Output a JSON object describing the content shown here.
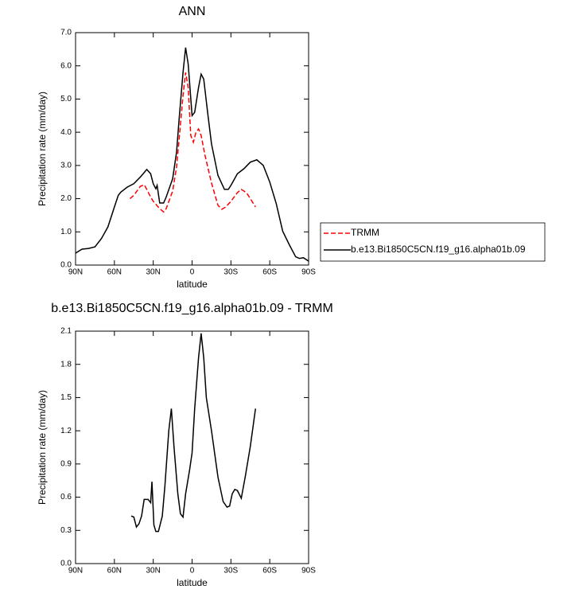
{
  "chart_data": [
    {
      "type": "line",
      "title": "ANN",
      "xlabel": "latitude",
      "ylabel": "Precipitation rate (mm/day)",
      "xlim": [
        90,
        -90
      ],
      "xticks": [
        {
          "value": 90,
          "label": "90N"
        },
        {
          "value": 60,
          "label": "60N"
        },
        {
          "value": 30,
          "label": "30N"
        },
        0,
        {
          "value": -30,
          "label": "30S"
        },
        {
          "value": -60,
          "label": "60S"
        },
        {
          "value": -90,
          "label": "90S"
        }
      ],
      "ylim": [
        0,
        7
      ],
      "yticks": [
        {
          "value": 0,
          "label": "0.0"
        },
        {
          "value": 1,
          "label": "1.0"
        },
        {
          "value": 2,
          "label": "2.0"
        },
        {
          "value": 3,
          "label": "3.0"
        },
        {
          "value": 4,
          "label": "4.0"
        },
        {
          "value": 5,
          "label": "5.0"
        },
        {
          "value": 6,
          "label": "6.0"
        },
        {
          "value": 7,
          "label": "7.0"
        }
      ],
      "legend": "right",
      "series": [
        {
          "name": "TRMM",
          "color": "#ff0000",
          "line_style": "dashed",
          "x": [
            48,
            45,
            40,
            37,
            35,
            32,
            30,
            25,
            22,
            20,
            15,
            12,
            10,
            7,
            5,
            3,
            1,
            -1,
            -3,
            -5,
            -7,
            -10,
            -15,
            -20,
            -23,
            -26,
            -30,
            -35,
            -38,
            -42,
            -45,
            -49
          ],
          "values": [
            2.0,
            2.1,
            2.37,
            2.42,
            2.28,
            2.05,
            1.92,
            1.7,
            1.6,
            1.7,
            2.23,
            2.95,
            3.8,
            5.1,
            5.8,
            5.35,
            3.9,
            3.7,
            4.0,
            4.1,
            3.9,
            3.3,
            2.47,
            1.8,
            1.68,
            1.75,
            1.92,
            2.18,
            2.28,
            2.18,
            2.0,
            1.75
          ]
        },
        {
          "name": "b.e13.Bi1850C5CN.f19_g16.alpha01b.09",
          "color": "#000000",
          "line_style": "solid",
          "x": [
            90,
            85,
            80,
            75,
            70,
            65,
            60,
            57,
            55,
            50,
            45,
            40,
            35,
            32,
            30,
            28,
            27,
            25,
            22,
            20,
            15,
            12,
            10,
            7,
            5,
            3,
            0,
            -2,
            -5,
            -7,
            -9,
            -12,
            -15,
            -20,
            -25,
            -28,
            -30,
            -35,
            -40,
            -45,
            -50,
            -55,
            -60,
            -65,
            -70,
            -75,
            -80,
            -83,
            -86,
            -90
          ],
          "values": [
            0.36,
            0.48,
            0.5,
            0.55,
            0.8,
            1.15,
            1.75,
            2.1,
            2.2,
            2.35,
            2.45,
            2.65,
            2.88,
            2.75,
            2.45,
            2.3,
            2.4,
            1.87,
            1.87,
            2.05,
            2.6,
            3.4,
            4.4,
            5.8,
            6.55,
            6.05,
            4.5,
            4.6,
            5.35,
            5.75,
            5.6,
            4.6,
            3.65,
            2.7,
            2.28,
            2.28,
            2.4,
            2.75,
            2.9,
            3.1,
            3.17,
            3.0,
            2.5,
            1.85,
            1.02,
            0.62,
            0.25,
            0.2,
            0.22,
            0.12
          ]
        }
      ]
    },
    {
      "type": "line",
      "title": "b.e13.Bi1850C5CN.f19_g16.alpha01b.09 - TRMM",
      "xlabel": "latitude",
      "ylabel": "Precipitation rate (mm/day)",
      "xlim": [
        90,
        -90
      ],
      "xticks": [
        {
          "value": 90,
          "label": "90N"
        },
        {
          "value": 60,
          "label": "60N"
        },
        {
          "value": 30,
          "label": "30N"
        },
        0,
        {
          "value": -30,
          "label": "30S"
        },
        {
          "value": -60,
          "label": "60S"
        },
        {
          "value": -90,
          "label": "90S"
        }
      ],
      "ylim": [
        0,
        2.1
      ],
      "yticks": [
        {
          "value": 0,
          "label": "0.0"
        },
        0.3,
        0.6,
        0.9,
        1.2,
        1.5,
        1.8,
        2.1
      ],
      "color": "#000000",
      "x": [
        47,
        45,
        43,
        41,
        39,
        37,
        34,
        32,
        31,
        29.5,
        28,
        26,
        23,
        21,
        18,
        16,
        14,
        11,
        9,
        7,
        5,
        2,
        0,
        -2,
        -5,
        -7,
        -9,
        -11,
        -15,
        -20,
        -24,
        -27,
        -29,
        -31,
        -33,
        -35,
        -38,
        -41,
        -45,
        -49
      ],
      "values": [
        0.43,
        0.42,
        0.33,
        0.36,
        0.43,
        0.58,
        0.58,
        0.55,
        0.74,
        0.35,
        0.29,
        0.29,
        0.43,
        0.7,
        1.2,
        1.4,
        1.06,
        0.63,
        0.45,
        0.42,
        0.63,
        0.84,
        1.0,
        1.4,
        1.86,
        2.08,
        1.86,
        1.5,
        1.2,
        0.78,
        0.56,
        0.51,
        0.52,
        0.63,
        0.67,
        0.66,
        0.59,
        0.78,
        1.06,
        1.4
      ]
    }
  ]
}
